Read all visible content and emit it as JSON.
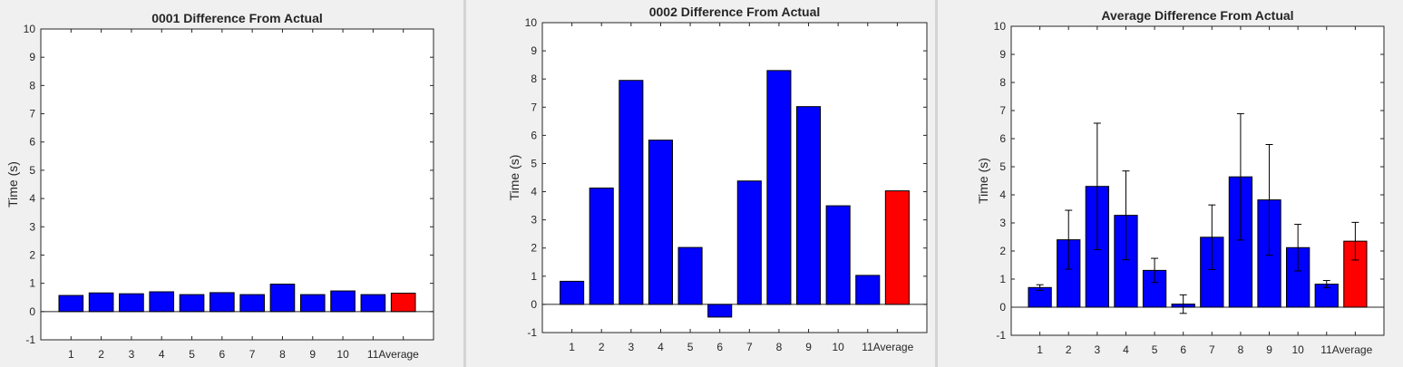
{
  "chart_data": [
    {
      "type": "bar",
      "title": "0001 Difference From Actual",
      "ylabel": "Time (s)",
      "xlabel": "",
      "ylim": [
        -1,
        10
      ],
      "yticks": [
        "-1",
        "0",
        "1",
        "2",
        "3",
        "4",
        "5",
        "6",
        "7",
        "8",
        "9",
        "10"
      ],
      "categories": [
        "1",
        "2",
        "3",
        "4",
        "5",
        "6",
        "7",
        "8",
        "9",
        "10",
        "11",
        "Average"
      ],
      "values": [
        0.57,
        0.66,
        0.63,
        0.7,
        0.6,
        0.67,
        0.6,
        0.97,
        0.6,
        0.73,
        0.6,
        0.65
      ],
      "colors": [
        "#0000ff",
        "#0000ff",
        "#0000ff",
        "#0000ff",
        "#0000ff",
        "#0000ff",
        "#0000ff",
        "#0000ff",
        "#0000ff",
        "#0000ff",
        "#0000ff",
        "#ff0000"
      ],
      "grid": false
    },
    {
      "type": "bar",
      "title": "0002 Difference From Actual",
      "ylabel": "Time (s)",
      "xlabel": "",
      "ylim": [
        -1,
        10
      ],
      "yticks": [
        "-1",
        "0",
        "1",
        "2",
        "3",
        "4",
        "5",
        "6",
        "7",
        "8",
        "9",
        "10"
      ],
      "categories": [
        "1",
        "2",
        "3",
        "4",
        "5",
        "6",
        "7",
        "8",
        "9",
        "10",
        "11",
        "Average"
      ],
      "values": [
        0.82,
        4.13,
        7.95,
        5.83,
        2.02,
        -0.45,
        4.38,
        8.3,
        7.02,
        3.5,
        1.03,
        4.03
      ],
      "colors": [
        "#0000ff",
        "#0000ff",
        "#0000ff",
        "#0000ff",
        "#0000ff",
        "#0000ff",
        "#0000ff",
        "#0000ff",
        "#0000ff",
        "#0000ff",
        "#0000ff",
        "#ff0000"
      ],
      "grid": false
    },
    {
      "type": "bar",
      "title": "Average Difference From Actual",
      "ylabel": "Time (s)",
      "xlabel": "",
      "ylim": [
        -1,
        10
      ],
      "yticks": [
        "-1",
        "0",
        "1",
        "2",
        "3",
        "4",
        "5",
        "6",
        "7",
        "8",
        "9",
        "10"
      ],
      "categories": [
        "1",
        "2",
        "3",
        "4",
        "5",
        "6",
        "7",
        "8",
        "9",
        "10",
        "11",
        "Average"
      ],
      "values": [
        0.7,
        2.4,
        4.3,
        3.27,
        1.31,
        0.11,
        2.49,
        4.64,
        3.82,
        2.12,
        0.82,
        2.35
      ],
      "error": [
        0.1,
        1.05,
        2.25,
        1.58,
        0.43,
        0.33,
        1.15,
        2.25,
        1.97,
        0.83,
        0.13,
        0.67
      ],
      "colors": [
        "#0000ff",
        "#0000ff",
        "#0000ff",
        "#0000ff",
        "#0000ff",
        "#0000ff",
        "#0000ff",
        "#0000ff",
        "#0000ff",
        "#0000ff",
        "#0000ff",
        "#ff0000"
      ],
      "grid": false
    }
  ]
}
